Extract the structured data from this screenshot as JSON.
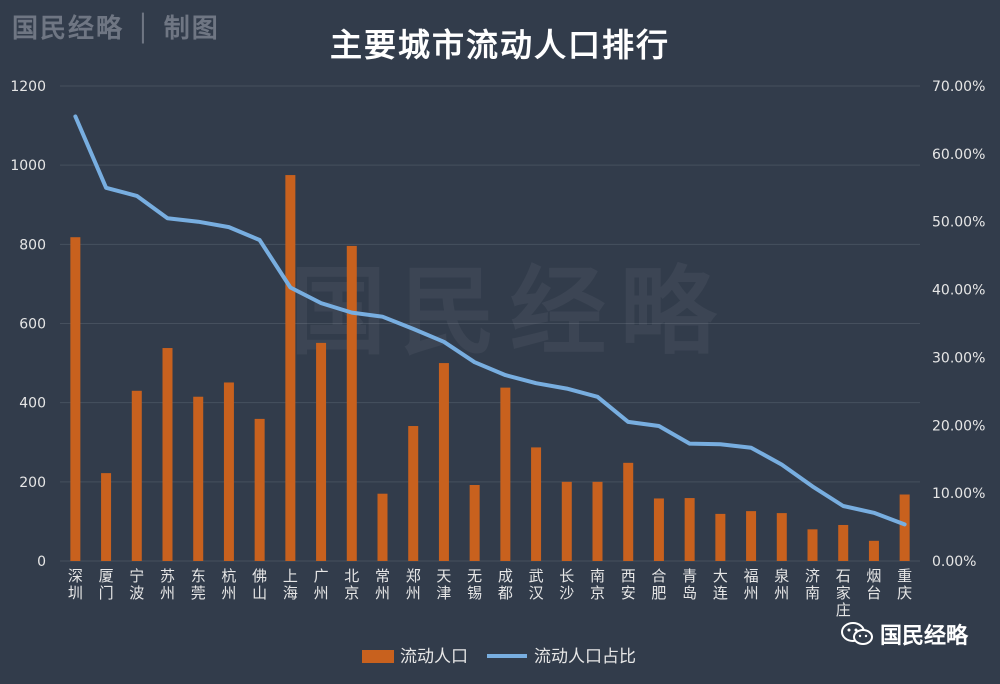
{
  "brand_text": "国民经略 │ 制图",
  "watermark": "国民经略",
  "source_badge": "国民经略",
  "colors": {
    "bar": "#c8611e",
    "line": "#78aee0",
    "background": "#323c4b",
    "grid": "#46505e"
  },
  "chart_data": {
    "type": "bar+line",
    "title": "主要城市流动人口排行",
    "categories": [
      "深圳",
      "厦门",
      "宁波",
      "苏州",
      "东莞",
      "杭州",
      "佛山",
      "上海",
      "广州",
      "北京",
      "常州",
      "郑州",
      "天津",
      "无锡",
      "成都",
      "武汉",
      "长沙",
      "南京",
      "西安",
      "合肥",
      "青岛",
      "大连",
      "福州",
      "泉州",
      "济南",
      "石家庄",
      "烟台",
      "重庆"
    ],
    "series": [
      {
        "name": "流动人口",
        "type": "bar",
        "axis": "left",
        "values": [
          818,
          222,
          430,
          538,
          415,
          451,
          359,
          975,
          551,
          796,
          170,
          341,
          500,
          192,
          438,
          287,
          200,
          200,
          248,
          158,
          159,
          119,
          126,
          121,
          80,
          91,
          51,
          168
        ]
      },
      {
        "name": "流动人口占比",
        "type": "line",
        "axis": "right",
        "values": [
          65.5,
          55.0,
          53.8,
          50.5,
          50.0,
          49.2,
          47.3,
          40.3,
          38.0,
          36.6,
          36.0,
          34.2,
          32.3,
          29.3,
          27.4,
          26.2,
          25.4,
          24.2,
          20.5,
          19.9,
          17.3,
          17.2,
          16.7,
          14.2,
          11.0,
          8.1,
          7.1,
          5.4
        ]
      }
    ],
    "y_left": {
      "min": 0,
      "max": 1200,
      "ticks": [
        "0",
        "200",
        "400",
        "600",
        "800",
        "1000",
        "1200"
      ]
    },
    "y_right": {
      "min": 0,
      "max": 70,
      "ticks": [
        "0.00%",
        "10.00%",
        "20.00%",
        "30.00%",
        "40.00%",
        "50.00%",
        "60.00%",
        "70.00%"
      ]
    },
    "grid": true,
    "legend": "bottom"
  }
}
